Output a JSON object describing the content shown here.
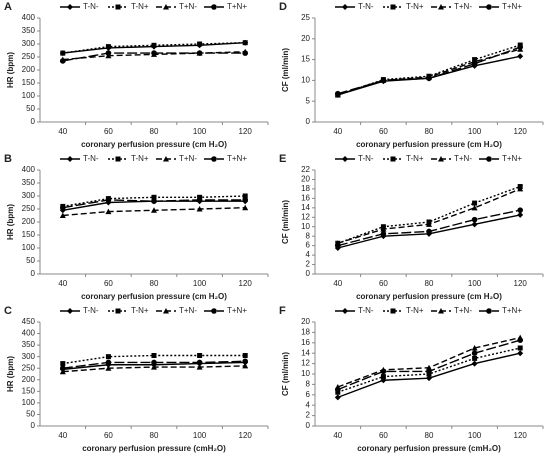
{
  "chart_data": [
    {
      "type": "line",
      "label": "A",
      "ylabel": "HR (bpm)",
      "xlabel": "coronary perfusion pressure (cm H₂O)",
      "categories": [
        "40",
        "60",
        "80",
        "100",
        "120"
      ],
      "ylim": [
        0,
        400
      ],
      "yticks": [
        0,
        50,
        100,
        150,
        200,
        250,
        300,
        350,
        400
      ],
      "series": [
        {
          "name": "T-N-",
          "color": "#000000",
          "dash": "none",
          "marker": "diamond",
          "values": [
            265,
            285,
            290,
            295,
            305
          ]
        },
        {
          "name": "T-N+",
          "color": "#000000",
          "dash": "2,2",
          "marker": "square",
          "values": [
            265,
            290,
            295,
            300,
            305
          ]
        },
        {
          "name": "T+N-",
          "color": "#000000",
          "dash": "6,3",
          "marker": "triangle",
          "values": [
            240,
            255,
            260,
            265,
            270
          ]
        },
        {
          "name": "T+N+",
          "color": "#000000",
          "dash": "10,3",
          "marker": "circle",
          "values": [
            235,
            265,
            265,
            265,
            265
          ]
        }
      ]
    },
    {
      "type": "line",
      "label": "D",
      "ylabel": "CF (ml/min)",
      "xlabel": "coronary perfusion pressure (cm H₂O)",
      "categories": [
        "40",
        "60",
        "80",
        "100",
        "120"
      ],
      "ylim": [
        0,
        25
      ],
      "yticks": [
        0,
        5,
        10,
        15,
        20,
        25
      ],
      "series": [
        {
          "name": "T-N-",
          "color": "#000000",
          "dash": "none",
          "marker": "diamond",
          "values": [
            6.5,
            9.8,
            10.5,
            13.5,
            15.8
          ]
        },
        {
          "name": "T-N+",
          "color": "#000000",
          "dash": "2,2",
          "marker": "square",
          "values": [
            6.5,
            10.2,
            11,
            15,
            18.5
          ]
        },
        {
          "name": "T+N-",
          "color": "#000000",
          "dash": "6,3",
          "marker": "triangle",
          "values": [
            6.5,
            10,
            10.8,
            14.5,
            17.5
          ]
        },
        {
          "name": "T+N+",
          "color": "#000000",
          "dash": "10,3",
          "marker": "circle",
          "values": [
            6.8,
            10,
            10.5,
            14,
            18
          ]
        }
      ]
    },
    {
      "type": "line",
      "label": "B",
      "ylabel": "HR (bpm)",
      "xlabel": "coronary perfusion pressure (cm H₂O)",
      "categories": [
        "40",
        "60",
        "80",
        "100",
        "120"
      ],
      "ylim": [
        0,
        400
      ],
      "yticks": [
        0,
        50,
        100,
        150,
        200,
        250,
        300,
        350,
        400
      ],
      "series": [
        {
          "name": "T-N-",
          "color": "#000000",
          "dash": "none",
          "marker": "diamond",
          "values": [
            245,
            275,
            280,
            280,
            280
          ]
        },
        {
          "name": "T-N+",
          "color": "#000000",
          "dash": "2,2",
          "marker": "square",
          "values": [
            260,
            290,
            295,
            295,
            300
          ]
        },
        {
          "name": "T+N-",
          "color": "#000000",
          "dash": "6,3",
          "marker": "triangle",
          "values": [
            225,
            240,
            245,
            250,
            255
          ]
        },
        {
          "name": "T+N+",
          "color": "#000000",
          "dash": "10,3",
          "marker": "circle",
          "values": [
            255,
            285,
            280,
            285,
            285
          ]
        }
      ]
    },
    {
      "type": "line",
      "label": "E",
      "ylabel": "CF (ml/min)",
      "xlabel": "coronary perfusion pressure (cm H₂O)",
      "categories": [
        "40",
        "60",
        "80",
        "100",
        "120"
      ],
      "ylim": [
        0,
        22
      ],
      "yticks": [
        0,
        2,
        4,
        6,
        8,
        10,
        12,
        14,
        16,
        18,
        20,
        22
      ],
      "series": [
        {
          "name": "T-N-",
          "color": "#000000",
          "dash": "none",
          "marker": "diamond",
          "values": [
            5.5,
            8,
            8.5,
            10.5,
            12.5
          ]
        },
        {
          "name": "T-N+",
          "color": "#000000",
          "dash": "2,2",
          "marker": "square",
          "values": [
            6.5,
            10,
            11,
            15,
            18.5
          ]
        },
        {
          "name": "T+N-",
          "color": "#000000",
          "dash": "6,3",
          "marker": "triangle",
          "values": [
            6.5,
            9.5,
            10.5,
            14,
            18
          ]
        },
        {
          "name": "T+N+",
          "color": "#000000",
          "dash": "10,3",
          "marker": "circle",
          "values": [
            6,
            8.5,
            9,
            11.5,
            13.5
          ]
        }
      ]
    },
    {
      "type": "line",
      "label": "C",
      "ylabel": "HR (bpm)",
      "xlabel": "coronary perfusion pressure (cmH₂O)",
      "categories": [
        "40",
        "60",
        "80",
        "100",
        "120"
      ],
      "ylim": [
        0,
        450
      ],
      "yticks": [
        0,
        50,
        100,
        150,
        200,
        250,
        300,
        350,
        400,
        450
      ],
      "series": [
        {
          "name": "T-N-",
          "color": "#000000",
          "dash": "none",
          "marker": "diamond",
          "values": [
            245,
            265,
            265,
            270,
            275
          ]
        },
        {
          "name": "T-N+",
          "color": "#000000",
          "dash": "2,2",
          "marker": "square",
          "values": [
            270,
            300,
            305,
            305,
            305
          ]
        },
        {
          "name": "T+N-",
          "color": "#000000",
          "dash": "6,3",
          "marker": "triangle",
          "values": [
            235,
            250,
            255,
            255,
            260
          ]
        },
        {
          "name": "T+N+",
          "color": "#000000",
          "dash": "10,3",
          "marker": "circle",
          "values": [
            250,
            275,
            275,
            275,
            280
          ]
        }
      ]
    },
    {
      "type": "line",
      "label": "F",
      "ylabel": "CF (ml/min)",
      "xlabel": "coronary perfusion pressure (cmH₂O)",
      "categories": [
        "40",
        "60",
        "80",
        "100",
        "120"
      ],
      "ylim": [
        0,
        20
      ],
      "yticks": [
        0,
        2,
        4,
        6,
        8,
        10,
        12,
        14,
        16,
        18,
        20
      ],
      "series": [
        {
          "name": "T-N-",
          "color": "#000000",
          "dash": "none",
          "marker": "diamond",
          "values": [
            5.5,
            8.8,
            9.2,
            12,
            14
          ]
        },
        {
          "name": "T-N+",
          "color": "#000000",
          "dash": "2,2",
          "marker": "square",
          "values": [
            6.5,
            9.5,
            10,
            13,
            15
          ]
        },
        {
          "name": "T+N-",
          "color": "#000000",
          "dash": "6,3",
          "marker": "triangle",
          "values": [
            7.5,
            10.8,
            11.2,
            15,
            17
          ]
        },
        {
          "name": "T+N+",
          "color": "#000000",
          "dash": "10,3",
          "marker": "circle",
          "values": [
            7,
            10.5,
            10.5,
            14,
            16.5
          ]
        }
      ]
    }
  ]
}
